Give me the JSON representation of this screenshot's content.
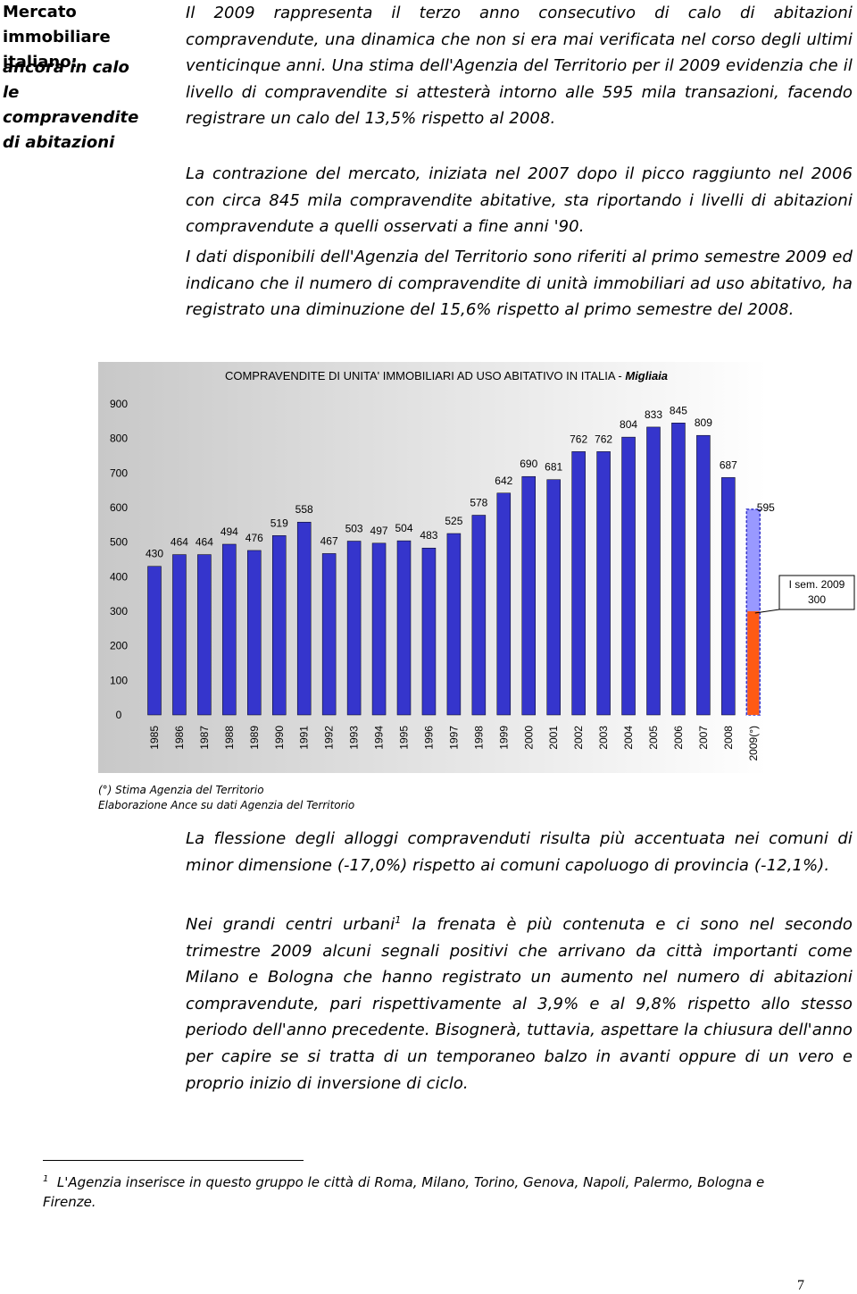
{
  "sidebar": {
    "title": "Mercato immobiliare italiano:",
    "subtitle": "ancora in calo le compravendite di abitazioni"
  },
  "paragraphs_top": [
    "Il 2009 rappresenta il terzo anno consecutivo di calo di abitazioni compravendute, una dinamica che non si era mai verificata nel corso degli ultimi venticinque anni. Una stima dell'Agenzia del Territorio per il 2009 evidenzia che il livello di compravendite si attesterà intorno alle 595 mila transazioni, facendo registrare un calo del 13,5% rispetto al 2008.",
    "La contrazione del mercato, iniziata nel 2007 dopo il picco raggiunto nel 2006 con circa 845 mila compravendite abitative, sta riportando i livelli di abitazioni compravendute a quelli osservati a fine anni '90.",
    "I dati disponibili dell'Agenzia del Territorio sono riferiti al primo semestre 2009 ed indicano che il numero di compravendite di unità immobiliari ad uso abitativo, ha registrato una diminuzione del 15,6% rispetto al primo semestre del 2008."
  ],
  "chart_data": {
    "type": "bar",
    "title": "COMPRAVENDITE DI UNITA' IMMOBILIARI AD USO ABITATIVO IN ITALIA - ",
    "subtitle": "Migliaia",
    "categories": [
      "1985",
      "1986",
      "1987",
      "1988",
      "1989",
      "1990",
      "1991",
      "1992",
      "1993",
      "1994",
      "1995",
      "1996",
      "1997",
      "1998",
      "1999",
      "2000",
      "2001",
      "2002",
      "2003",
      "2004",
      "2005",
      "2006",
      "2007",
      "2008",
      "2009(°)"
    ],
    "values": [
      430,
      464,
      464,
      494,
      476,
      519,
      558,
      467,
      503,
      497,
      504,
      483,
      525,
      578,
      642,
      690,
      681,
      762,
      762,
      804,
      833,
      845,
      809,
      687,
      595
    ],
    "color": "#3535cc",
    "estimate_color": "#9999ff",
    "ylim": [
      0,
      900
    ],
    "yticks": [
      0,
      100,
      200,
      300,
      400,
      500,
      600,
      700,
      800,
      900
    ],
    "annotation": {
      "label": "I sem. 2009",
      "value": 300,
      "color": "#ff5a14"
    }
  },
  "source_notes": [
    "(°) Stima Agenzia del Territorio",
    "Elaborazione Ance su dati Agenzia del Territorio"
  ],
  "paragraphs_bottom": [
    {
      "text": "La flessione degli alloggi compravenduti risulta più accentuata nei comuni di minor dimensione (-17,0%) rispetto ai comuni capoluogo di provincia (-12,1%)."
    },
    {
      "text": "Nei grandi centri urbani",
      "footnote_ref": "1",
      "after": " la frenata è più contenuta e ci sono nel secondo trimestre 2009 alcuni segnali positivi che arrivano da città importanti come Milano e Bologna che hanno registrato un aumento nel numero di abitazioni compravendute, pari rispettivamente al 3,9% e al 9,8% rispetto allo stesso periodo dell'anno precedente. Bisognerà, tuttavia, aspettare la chiusura dell'anno per capire se si tratta di un temporaneo balzo in avanti oppure di un vero e proprio inizio di inversione di ciclo."
    }
  ],
  "footnote": {
    "marker": "1",
    "text": "L'Agenzia inserisce in questo gruppo le città di Roma, Milano, Torino, Genova, Napoli, Palermo, Bologna e Firenze."
  },
  "page_number": "7"
}
